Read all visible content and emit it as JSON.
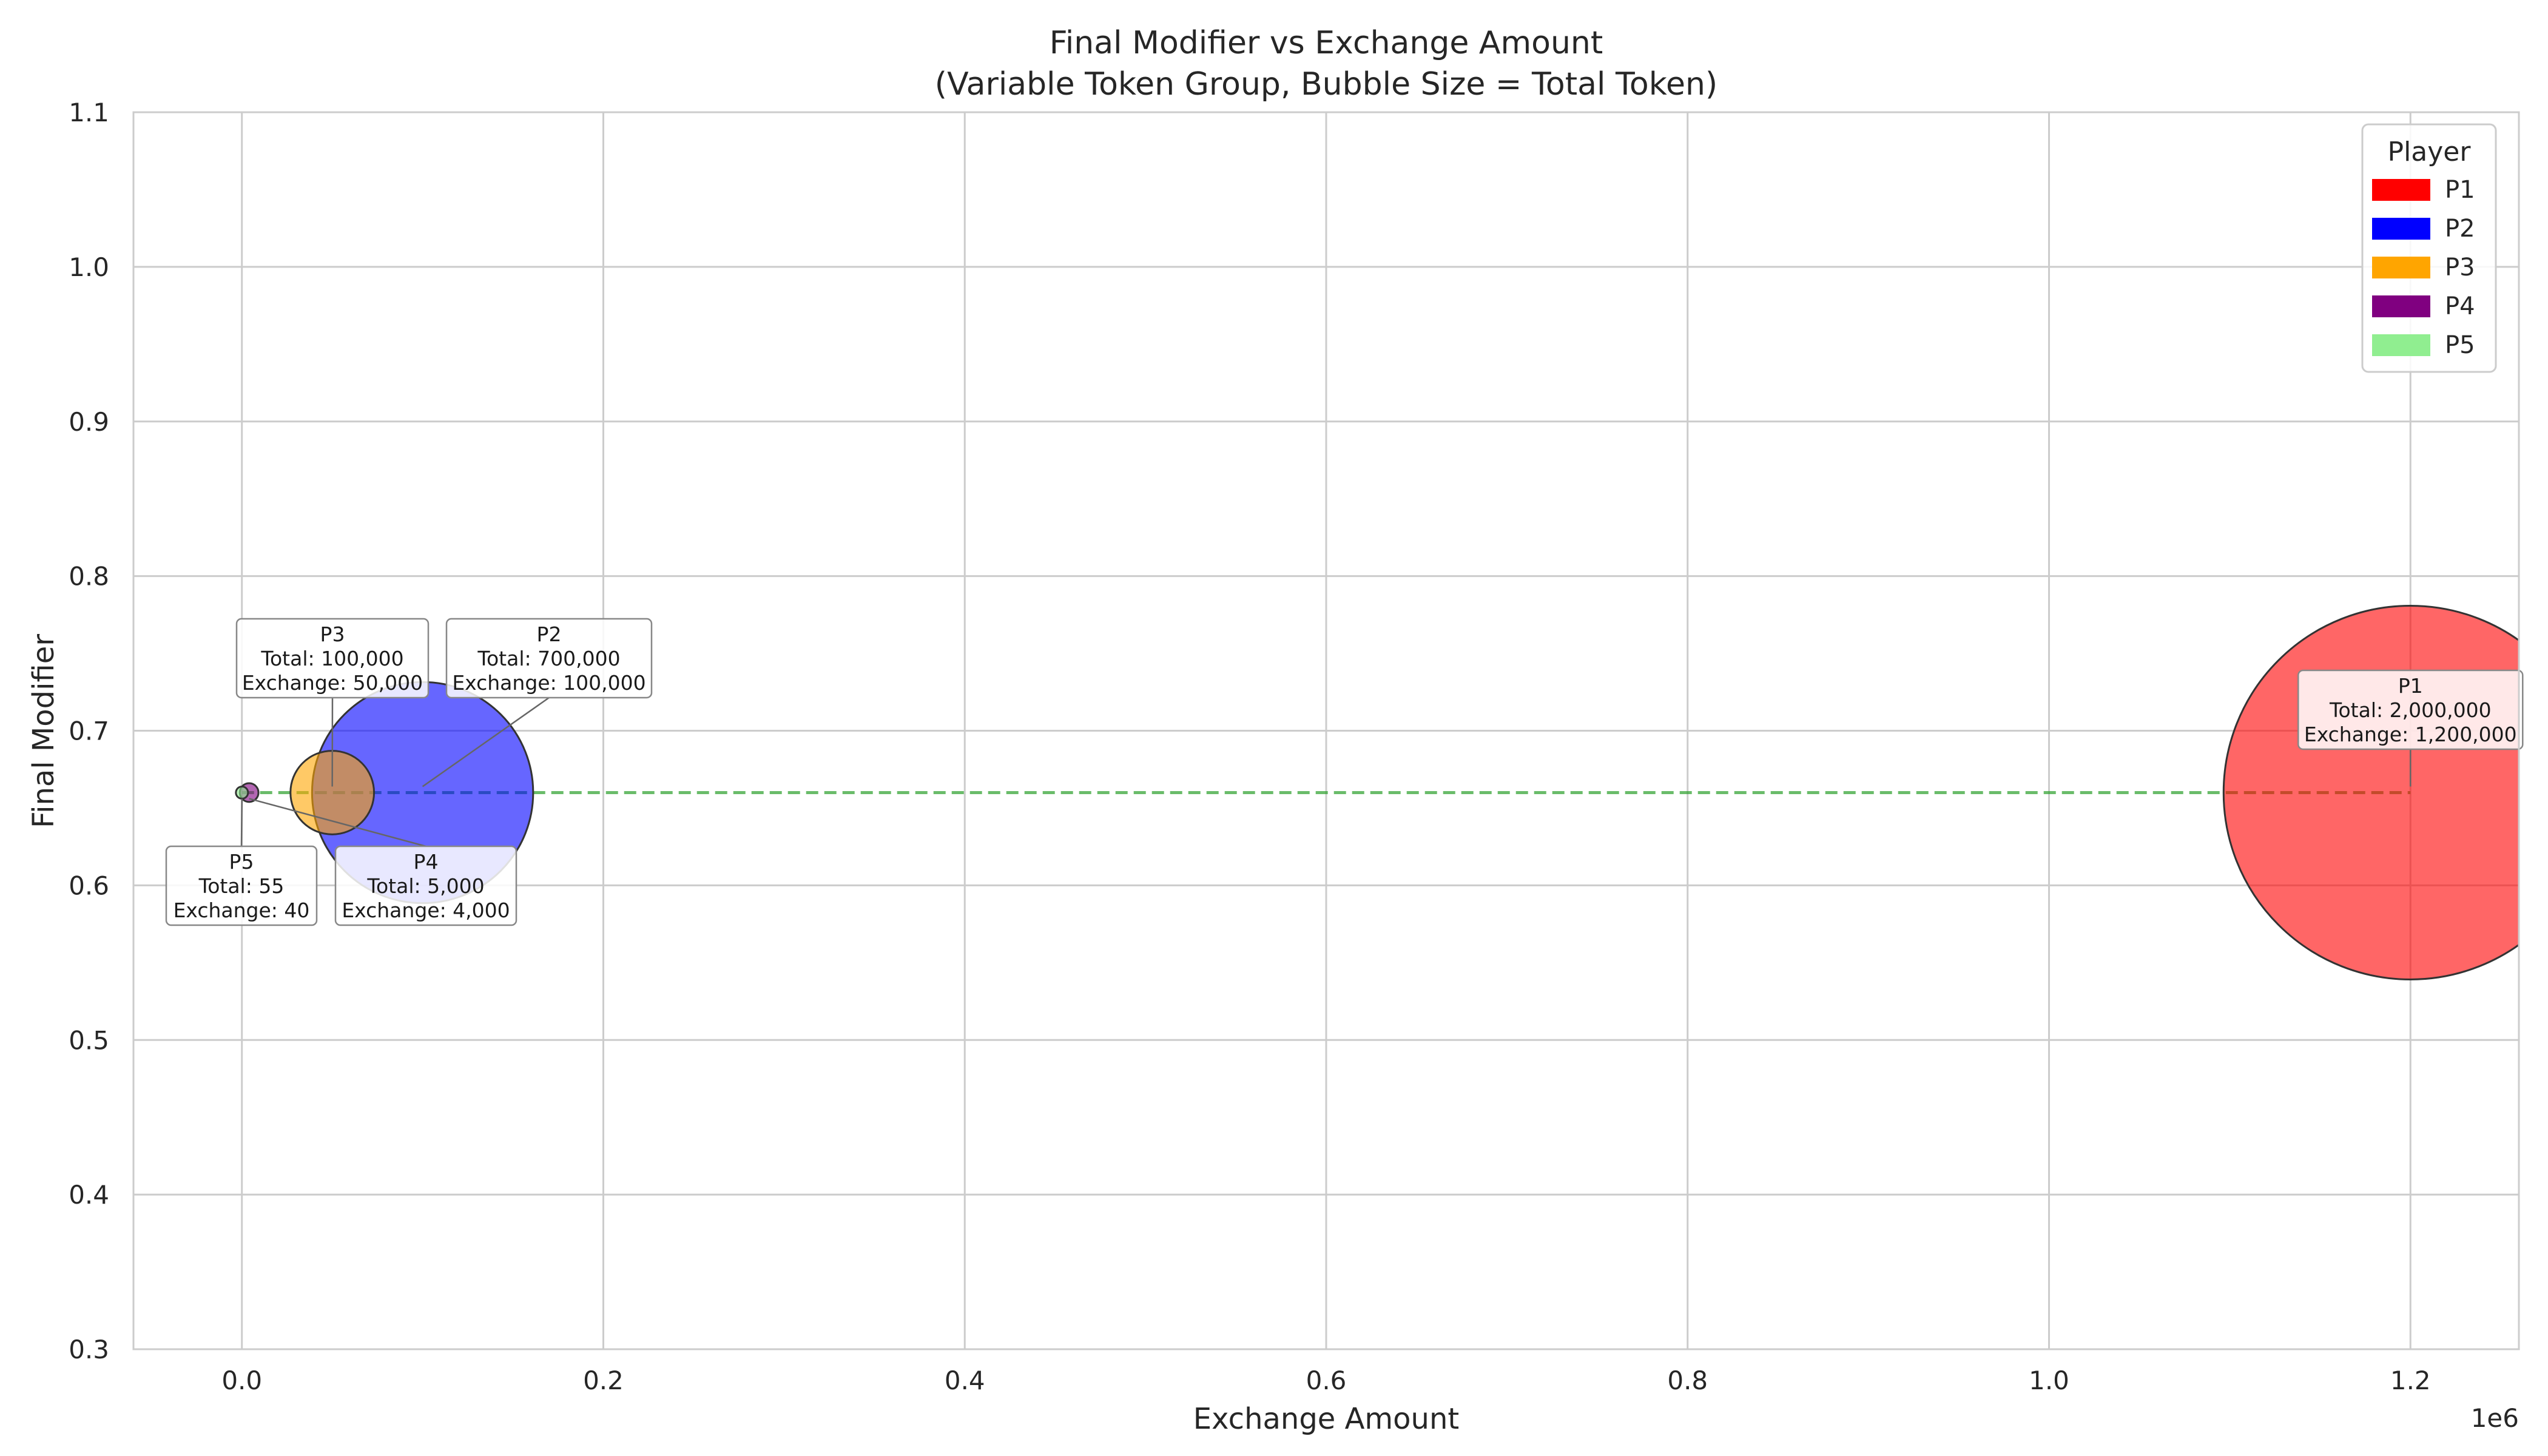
{
  "chart_data": {
    "type": "scatter",
    "title": "Final Modifier vs Exchange Amount",
    "subtitle": "(Variable Token Group, Bubble Size = Total Token)",
    "xlabel": "Exchange Amount",
    "ylabel": "Final Modifier",
    "x_offset_label": "1e6",
    "xlim": [
      -60000,
      1260000
    ],
    "ylim": [
      0.3,
      1.1
    ],
    "x_ticks": [
      0,
      200000,
      400000,
      600000,
      800000,
      1000000,
      1200000
    ],
    "x_tick_labels": [
      "0.0",
      "0.2",
      "0.4",
      "0.6",
      "0.8",
      "1.0",
      "1.2"
    ],
    "y_ticks": [
      0.3,
      0.4,
      0.5,
      0.6,
      0.7,
      0.8,
      0.9,
      1.0,
      1.1
    ],
    "y_tick_labels": [
      "0.3",
      "0.4",
      "0.5",
      "0.6",
      "0.7",
      "0.8",
      "0.9",
      "1.0",
      "1.1"
    ],
    "grid": true,
    "legend": {
      "title": "Player",
      "placement": "top-right"
    },
    "reference_line": {
      "y": 0.66,
      "x_range": [
        0,
        1200000
      ],
      "color": "#2ca02c",
      "style": "dashed"
    },
    "series": [
      {
        "name": "P1",
        "color": "#ff0000",
        "x": 1200000,
        "y": 0.66,
        "total": 2000000,
        "label": [
          "P1",
          "Total: 2,000,000",
          "Exchange: 1,200,000"
        ]
      },
      {
        "name": "P2",
        "color": "#0000ff",
        "x": 100000,
        "y": 0.66,
        "total": 700000,
        "label": [
          "P2",
          "Total: 700,000",
          "Exchange: 100,000"
        ]
      },
      {
        "name": "P3",
        "color": "#ffa500",
        "x": 50000,
        "y": 0.66,
        "total": 100000,
        "label": [
          "P3",
          "Total: 100,000",
          "Exchange: 50,000"
        ]
      },
      {
        "name": "P4",
        "color": "#800080",
        "x": 4000,
        "y": 0.66,
        "total": 5000,
        "label": [
          "P4",
          "Total: 5,000",
          "Exchange: 4,000"
        ]
      },
      {
        "name": "P5",
        "color": "#90ee90",
        "x": 40,
        "y": 0.66,
        "total": 55,
        "label": [
          "P5",
          "Total: 55",
          "Exchange: 40"
        ]
      }
    ]
  }
}
